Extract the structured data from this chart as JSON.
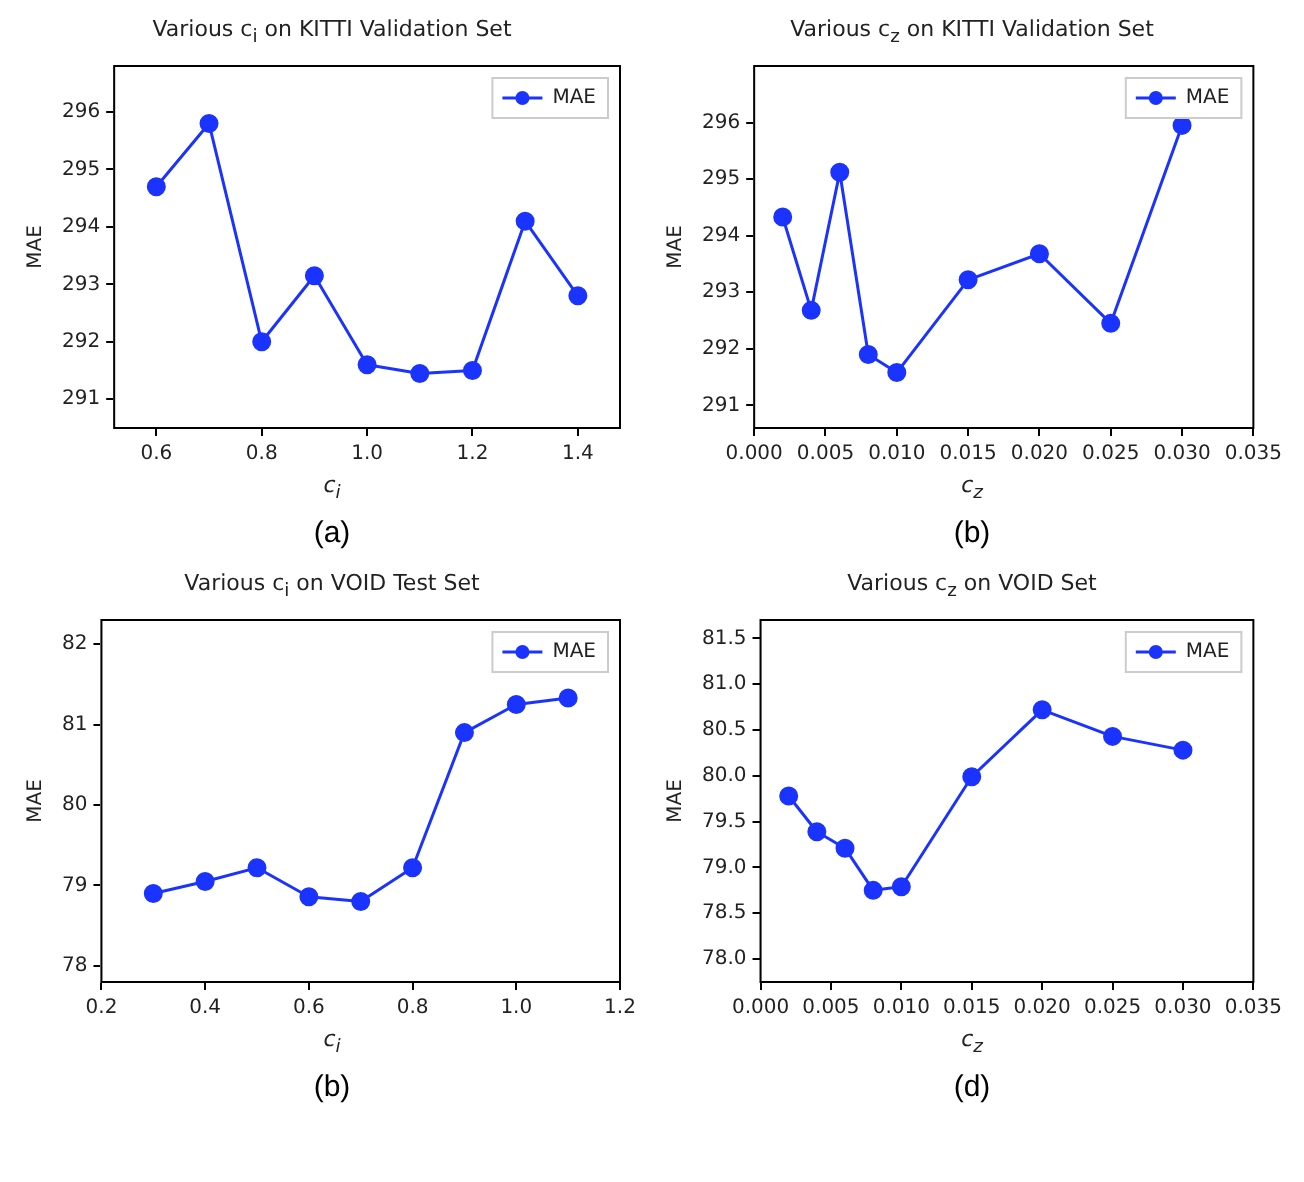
{
  "chart_data": [
    {
      "type": "line",
      "title": "Various c$_{i}$ on KITTI Validation Set",
      "xlabel": "c$_{i}$",
      "ylabel": "MAE",
      "annotations": [
        "(a)"
      ],
      "legend": "top right",
      "marker": "circle",
      "grid": false,
      "x": [
        0.6,
        0.7,
        0.8,
        0.9,
        1.0,
        1.1,
        1.2,
        1.3,
        1.4
      ],
      "xlim": [
        0.52,
        1.48
      ],
      "xticks": [
        0.6,
        0.8,
        {
          "value": 1.0,
          "label": "1.0"
        },
        1.2,
        1.4
      ],
      "ylim": [
        290.5,
        296.8
      ],
      "yticks": [
        291,
        292,
        293,
        294,
        295,
        296
      ],
      "series": [
        {
          "name": "MAE",
          "color": "#1a33ff",
          "values": [
            294.7,
            295.8,
            292.0,
            293.15,
            291.6,
            291.45,
            291.5,
            294.1,
            292.8
          ]
        }
      ]
    },
    {
      "type": "line",
      "title": "Various c$_{z}$ on KITTI Validation Set",
      "xlabel": "c$_{z}$",
      "ylabel": "MAE",
      "annotations": [
        "(b)"
      ],
      "legend": "top right",
      "marker": "circle",
      "grid": false,
      "x": [
        0.002,
        0.004,
        0.006,
        0.008,
        0.01,
        0.015,
        0.02,
        0.025,
        0.03
      ],
      "xlim": [
        0,
        0.035
      ],
      "xticks": [
        {
          "value": 0,
          "label": "0.000"
        },
        {
          "value": 0.005,
          "label": "0.005"
        },
        {
          "value": 0.01,
          "label": "0.010"
        },
        {
          "value": 0.015,
          "label": "0.015"
        },
        {
          "value": 0.02,
          "label": "0.020"
        },
        {
          "value": 0.025,
          "label": "0.025"
        },
        {
          "value": 0.03,
          "label": "0.030"
        },
        {
          "value": 0.035,
          "label": "0.035"
        }
      ],
      "ylim": [
        290.6,
        297.0
      ],
      "yticks": [
        291,
        292,
        293,
        294,
        295,
        296
      ],
      "series": [
        {
          "name": "MAE",
          "color": "#1a33ff",
          "values": [
            294.33,
            292.68,
            295.12,
            291.9,
            291.58,
            293.22,
            293.68,
            292.45,
            295.95
          ]
        }
      ]
    },
    {
      "type": "line",
      "title": "Various c$_{i}$ on VOID Test Set",
      "xlabel": "c$_{i}$",
      "ylabel": "MAE",
      "annotations": [
        "(b)"
      ],
      "legend": "top right",
      "marker": "circle",
      "grid": false,
      "x": [
        0.3,
        0.4,
        0.5,
        0.6,
        0.7,
        0.8,
        0.9,
        1.0,
        1.1
      ],
      "xlim": [
        0.2,
        1.2
      ],
      "xticks": [
        0.2,
        0.4,
        0.6,
        0.8,
        {
          "value": 1.0,
          "label": "1.0"
        },
        1.2
      ],
      "ylim": [
        77.8,
        82.3
      ],
      "yticks": [
        78,
        79,
        80,
        81,
        82
      ],
      "series": [
        {
          "name": "MAE",
          "color": "#1a33ff",
          "values": [
            78.9,
            79.05,
            79.22,
            78.86,
            78.8,
            79.22,
            80.9,
            81.25,
            81.33
          ]
        }
      ]
    },
    {
      "type": "line",
      "title": "Various c$_{z}$ on VOID Set",
      "xlabel": "c$_{z}$",
      "ylabel": "MAE",
      "annotations": [
        "(d)"
      ],
      "legend": "top right",
      "marker": "circle",
      "grid": false,
      "x": [
        0.002,
        0.004,
        0.006,
        0.008,
        0.01,
        0.015,
        0.02,
        0.025,
        0.03
      ],
      "xlim": [
        0,
        0.035
      ],
      "xticks": [
        {
          "value": 0,
          "label": "0.000"
        },
        {
          "value": 0.005,
          "label": "0.005"
        },
        {
          "value": 0.01,
          "label": "0.010"
        },
        {
          "value": 0.015,
          "label": "0.015"
        },
        {
          "value": 0.02,
          "label": "0.020"
        },
        {
          "value": 0.025,
          "label": "0.025"
        },
        {
          "value": 0.03,
          "label": "0.030"
        },
        {
          "value": 0.035,
          "label": "0.035"
        }
      ],
      "ylim": [
        77.75,
        81.7
      ],
      "yticks": [
        {
          "value": 78,
          "label": "78.0"
        },
        78.5,
        {
          "value": 79,
          "label": "79.0"
        },
        79.5,
        {
          "value": 80,
          "label": "80.0"
        },
        80.5,
        {
          "value": 81,
          "label": "81.0"
        },
        81.5
      ],
      "series": [
        {
          "name": "MAE",
          "color": "#1a33ff",
          "values": [
            79.78,
            79.39,
            79.21,
            78.75,
            78.79,
            79.99,
            80.72,
            80.43,
            80.28
          ]
        }
      ]
    }
  ]
}
